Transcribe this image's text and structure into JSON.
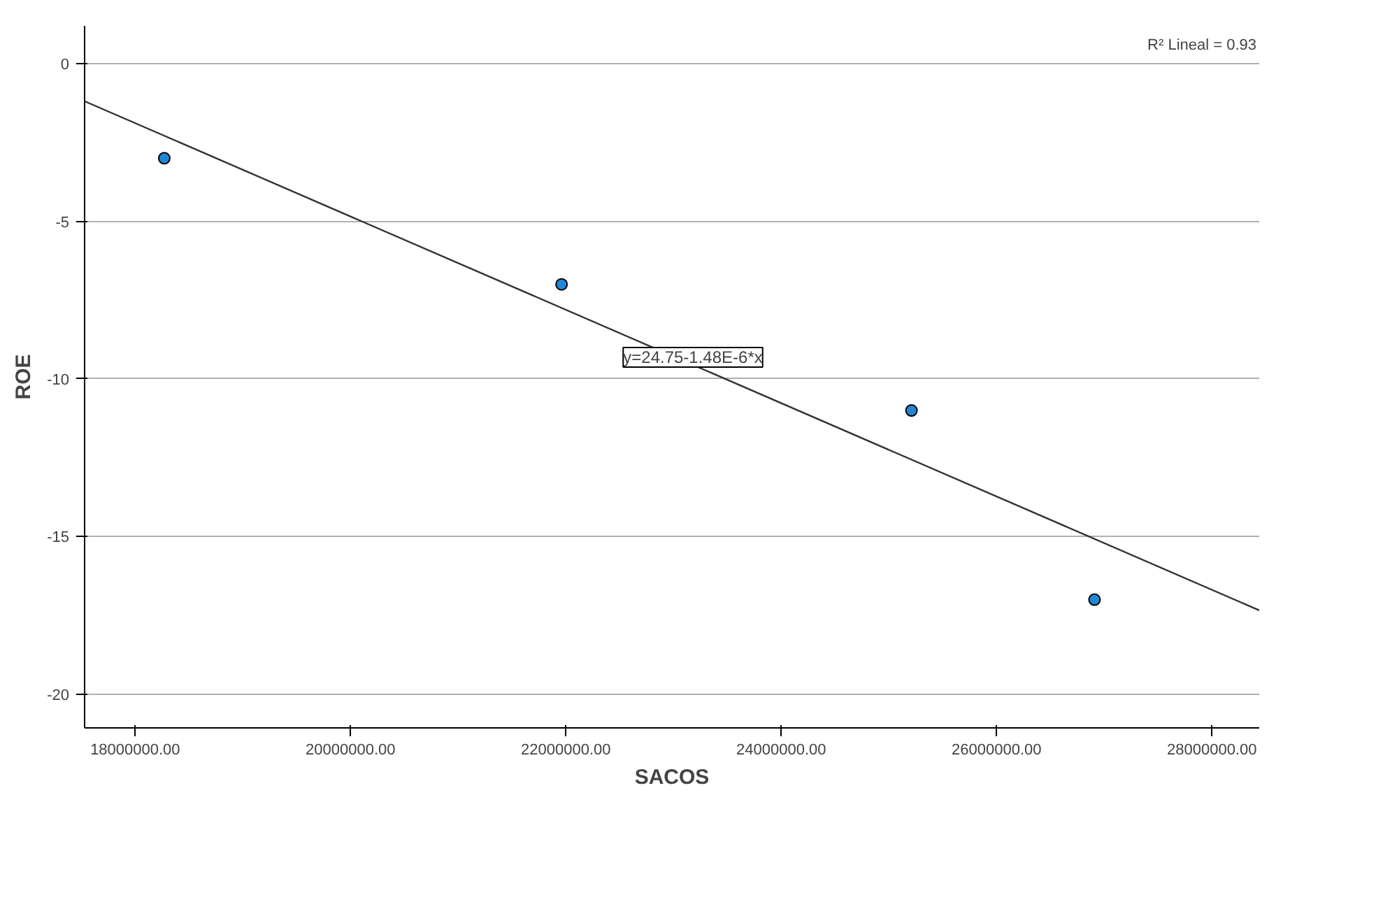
{
  "chart_data": {
    "type": "scatter",
    "xlabel": "SACOS",
    "ylabel": "ROE",
    "x": [
      18270000,
      21960000,
      25210000,
      26910000
    ],
    "series": [
      {
        "color": "#1f88d6",
        "marker": "circle",
        "values": [
          -3,
          -7,
          -11,
          -17
        ]
      },
      {
        "type": "line",
        "color": "#333333",
        "marker": "none",
        "line_style": "solid",
        "x": [
          17530000,
          28440000
        ],
        "values": [
          -1.19,
          -17.34
        ]
      }
    ],
    "xlim": [
      17530000,
      28440000
    ],
    "ylim": [
      -21.07,
      1.2
    ],
    "xticks": [
      {
        "value": 18000000,
        "label": "18000000.00"
      },
      {
        "value": 20000000,
        "label": "20000000.00"
      },
      {
        "value": 22000000,
        "label": "22000000.00"
      },
      {
        "value": 24000000,
        "label": "24000000.00"
      },
      {
        "value": 26000000,
        "label": "26000000.00"
      },
      {
        "value": 28000000,
        "label": "28000000.00"
      }
    ],
    "yticks": [
      0,
      -5,
      -10,
      -15,
      -20
    ],
    "grid": "y",
    "annotations": [
      "y=24.75-1.48E-6*x",
      "R² Lineal = 0.93"
    ]
  }
}
